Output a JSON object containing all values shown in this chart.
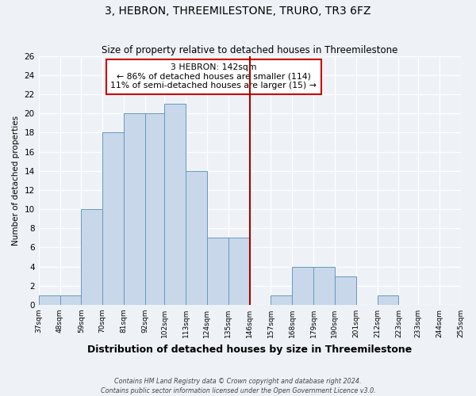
{
  "title": "3, HEBRON, THREEMILESTONE, TRURO, TR3 6FZ",
  "subtitle": "Size of property relative to detached houses in Threemilestone",
  "xlabel": "Distribution of detached houses by size in Threemilestone",
  "ylabel": "Number of detached properties",
  "bin_labels": [
    "37sqm",
    "48sqm",
    "59sqm",
    "70sqm",
    "81sqm",
    "92sqm",
    "102sqm",
    "113sqm",
    "124sqm",
    "135sqm",
    "146sqm",
    "157sqm",
    "168sqm",
    "179sqm",
    "190sqm",
    "201sqm",
    "212sqm",
    "223sqm",
    "233sqm",
    "244sqm",
    "255sqm"
  ],
  "bin_edges": [
    37,
    48,
    59,
    70,
    81,
    92,
    102,
    113,
    124,
    135,
    146,
    157,
    168,
    179,
    190,
    201,
    212,
    223,
    233,
    244,
    255
  ],
  "bar_heights": [
    1,
    1,
    10,
    18,
    20,
    20,
    21,
    14,
    7,
    7,
    0,
    1,
    4,
    4,
    3,
    0,
    1,
    0,
    0,
    0
  ],
  "bar_color": "#c8d8ea",
  "bar_edge_color": "#6699bb",
  "vline_x": 146,
  "vline_color": "#aa0000",
  "annotation_title": "3 HEBRON: 142sqm",
  "annotation_line1": "← 86% of detached houses are smaller (114)",
  "annotation_line2": "11% of semi-detached houses are larger (15) →",
  "annotation_box_edge": "#cc0000",
  "ylim": [
    0,
    26
  ],
  "yticks": [
    0,
    2,
    4,
    6,
    8,
    10,
    12,
    14,
    16,
    18,
    20,
    22,
    24,
    26
  ],
  "footer_line1": "Contains HM Land Registry data © Crown copyright and database right 2024.",
  "footer_line2": "Contains public sector information licensed under the Open Government Licence v3.0.",
  "bg_color": "#eef2f7"
}
